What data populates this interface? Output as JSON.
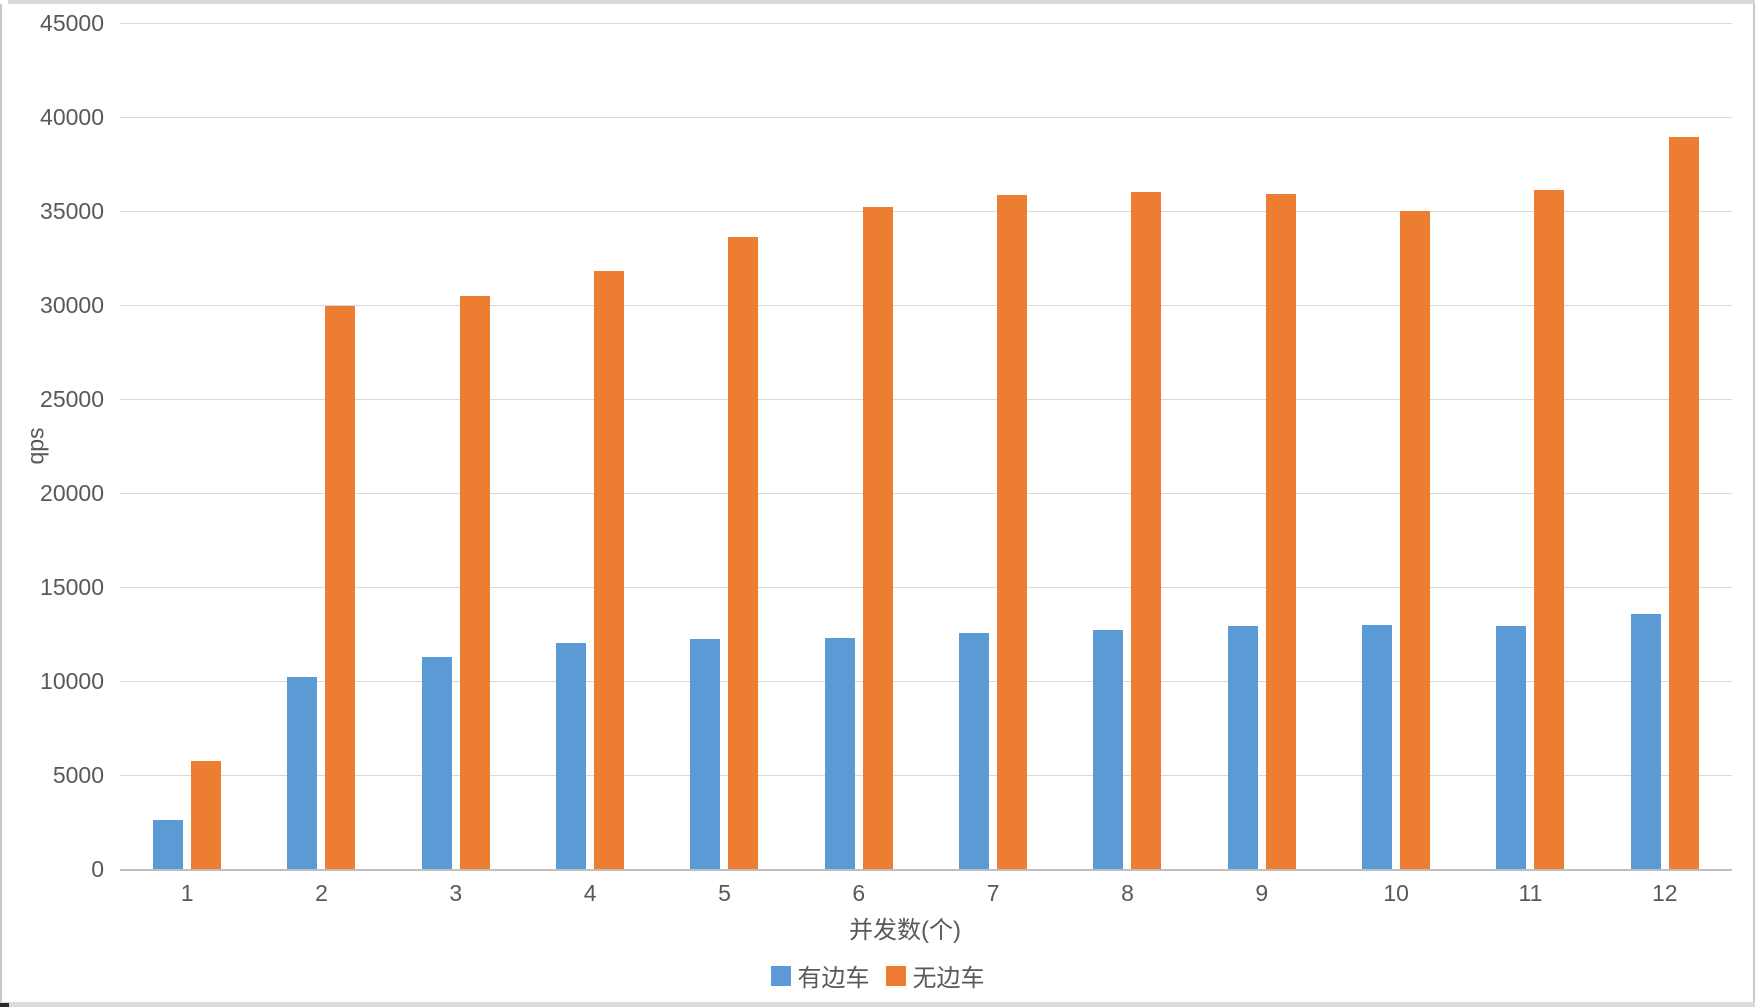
{
  "chart_data": {
    "type": "bar",
    "title": "",
    "categories": [
      "1",
      "2",
      "3",
      "4",
      "5",
      "6",
      "7",
      "8",
      "9",
      "10",
      "11",
      "12"
    ],
    "series": [
      {
        "name": "有边车",
        "color": "#5B9BD5",
        "values": [
          2600,
          10200,
          11300,
          12000,
          12250,
          12300,
          12550,
          12700,
          12950,
          13000,
          12950,
          13550
        ]
      },
      {
        "name": "无边车",
        "color": "#ED7D31",
        "values": [
          5750,
          29950,
          30500,
          31800,
          33600,
          35200,
          35850,
          36000,
          35900,
          35000,
          36100,
          38950
        ]
      }
    ],
    "xlabel": "并发数(个)",
    "ylabel": "qps",
    "ylim": [
      0,
      45000
    ],
    "ytick_step": 5000,
    "ytick_labels": [
      "0",
      "5000",
      "10000",
      "15000",
      "20000",
      "25000",
      "30000",
      "35000",
      "40000",
      "45000"
    ],
    "grid": true,
    "legend_position": "bottom",
    "colors": {
      "gridline": "#D9D9D9",
      "axis_line": "#BFBFBF",
      "text": "#595959",
      "background": "#FFFFFF"
    }
  }
}
